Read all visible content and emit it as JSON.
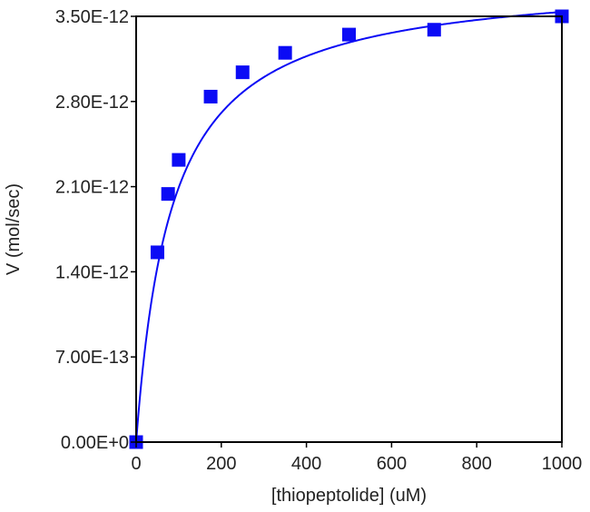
{
  "chart_data": {
    "type": "scatter",
    "title": "",
    "xlabel": "[thiopeptolide] (uM)",
    "ylabel": "V (mol/sec)",
    "xlim": [
      0,
      1000
    ],
    "ylim": [
      0,
      3.5e-12
    ],
    "x_ticks": [
      0,
      200,
      400,
      600,
      800,
      1000
    ],
    "x_tick_labels": [
      "0",
      "200",
      "400",
      "600",
      "800",
      "1000"
    ],
    "y_ticks": [
      0,
      7e-13,
      1.4e-12,
      2.1e-12,
      2.8e-12,
      3.5e-12
    ],
    "y_tick_labels": [
      "0.00E+0",
      "7.00E-13",
      "1.40E-12",
      "2.10E-12",
      "2.80E-12",
      "3.50E-12"
    ],
    "grid": false,
    "series": [
      {
        "type": "scatter",
        "marker": "square",
        "color": "#0b0bf5",
        "x": [
          0,
          50,
          75,
          100,
          175,
          250,
          350,
          500,
          700,
          1000
        ],
        "y": [
          0,
          1.56e-12,
          2.04e-12,
          2.32e-12,
          2.84e-12,
          3.04e-12,
          3.2e-12,
          3.35e-12,
          3.39e-12,
          3.5e-12
        ]
      },
      {
        "type": "line",
        "fit": "Michaelis-Menten",
        "color": "#0b0bf5",
        "Vmax": 3.83e-12,
        "Km": 83
      }
    ]
  }
}
